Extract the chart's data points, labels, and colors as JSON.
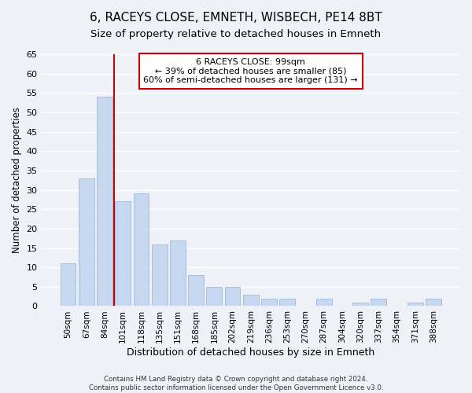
{
  "title": "6, RACEYS CLOSE, EMNETH, WISBECH, PE14 8BT",
  "subtitle": "Size of property relative to detached houses in Emneth",
  "xlabel": "Distribution of detached houses by size in Emneth",
  "ylabel": "Number of detached properties",
  "bar_labels": [
    "50sqm",
    "67sqm",
    "84sqm",
    "101sqm",
    "118sqm",
    "135sqm",
    "151sqm",
    "168sqm",
    "185sqm",
    "202sqm",
    "219sqm",
    "236sqm",
    "253sqm",
    "270sqm",
    "287sqm",
    "304sqm",
    "320sqm",
    "337sqm",
    "354sqm",
    "371sqm",
    "388sqm"
  ],
  "bar_values": [
    11,
    33,
    54,
    27,
    29,
    16,
    17,
    8,
    5,
    5,
    3,
    2,
    2,
    0,
    2,
    0,
    1,
    2,
    0,
    1,
    2
  ],
  "bar_color": "#c5d8f0",
  "bar_edge_color": "#a0b8d8",
  "ylim": [
    0,
    65
  ],
  "yticks": [
    0,
    5,
    10,
    15,
    20,
    25,
    30,
    35,
    40,
    45,
    50,
    55,
    60,
    65
  ],
  "marker_color": "#cc0000",
  "annotation_title": "6 RACEYS CLOSE: 99sqm",
  "annotation_line1": "← 39% of detached houses are smaller (85)",
  "annotation_line2": "60% of semi-detached houses are larger (131) →",
  "annotation_box_color": "#ffffff",
  "annotation_box_edge": "#cc0000",
  "footer_line1": "Contains HM Land Registry data © Crown copyright and database right 2024.",
  "footer_line2": "Contains public sector information licensed under the Open Government Licence v3.0.",
  "background_color": "#eef2f8",
  "plot_background": "#eef2f8",
  "grid_color": "#ffffff",
  "title_fontsize": 11,
  "subtitle_fontsize": 9.5
}
